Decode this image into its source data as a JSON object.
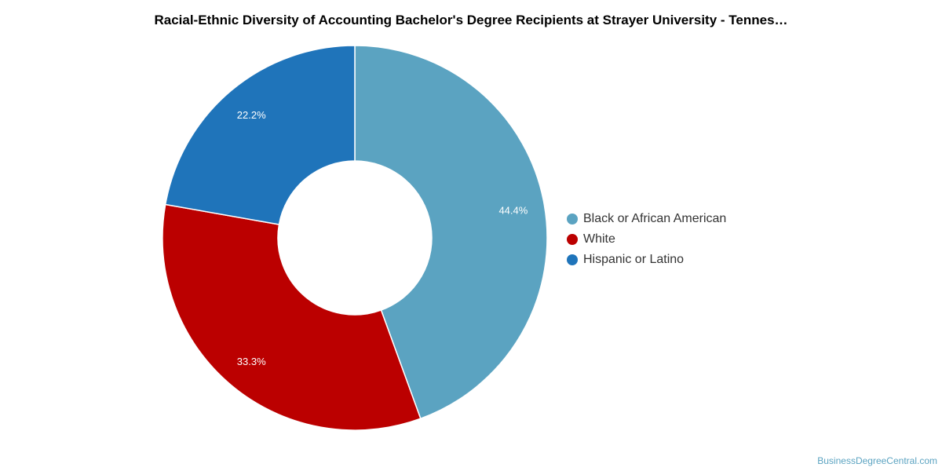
{
  "chart_data": {
    "type": "pie",
    "title": "Racial-Ethnic Diversity of Accounting Bachelor's Degree Recipients at Strayer University - Tennes…",
    "donut": true,
    "categories": [
      "Black or African American",
      "White",
      "Hispanic or Latino"
    ],
    "values": [
      44.4,
      33.3,
      22.2
    ],
    "labels": [
      "44.4%",
      "33.3%",
      "22.2%"
    ],
    "colors": [
      "#5ba3c1",
      "#bb0000",
      "#1f74ba"
    ],
    "legend_position": "right"
  },
  "watermark": "BusinessDegreeCentral.com"
}
